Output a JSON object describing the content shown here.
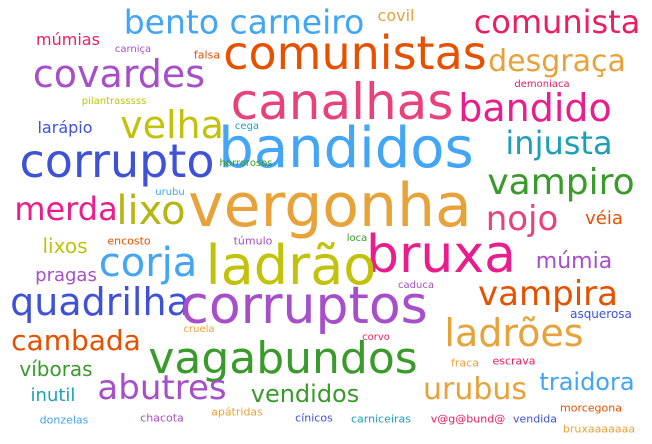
{
  "colors": {
    "green": "#3a9a2b",
    "orange": "#e8a23a",
    "red_orange": "#e65100",
    "blue": "#42a5f5",
    "dark_blue": "#3f51d6",
    "purple": "#a64fc9",
    "pink": "#e8417b",
    "magenta": "#e91e8c",
    "teal": "#1e9fb8",
    "yellow_green": "#c2c20b",
    "olive": "#b5b514"
  },
  "words": [
    {
      "text": "bento carneiro",
      "color": "#42a5f5"
    },
    {
      "text": "comunista",
      "color": "#e91e63"
    },
    {
      "text": "covil",
      "color": "#e8a23a"
    },
    {
      "text": "múmias",
      "color": "#e91e63"
    },
    {
      "text": "carniça",
      "color": "#a64fc9"
    },
    {
      "text": "falsa",
      "color": "#e65100"
    },
    {
      "text": "comunistas",
      "color": "#e65100"
    },
    {
      "text": "desgraça",
      "color": "#e8a23a"
    },
    {
      "text": "covardes",
      "color": "#a64fc9"
    },
    {
      "text": "demoniaca",
      "color": "#e91e63"
    },
    {
      "text": "pilantrasssss",
      "color": "#c2c20b"
    },
    {
      "text": "canalhas",
      "color": "#e8417b"
    },
    {
      "text": "bandido",
      "color": "#e91e8c"
    },
    {
      "text": "larápio",
      "color": "#3f51d6"
    },
    {
      "text": "velha",
      "color": "#c2c20b"
    },
    {
      "text": "cega",
      "color": "#1e9fb8"
    },
    {
      "text": "injusta",
      "color": "#1e9fb8"
    },
    {
      "text": "corrupto",
      "color": "#3f51d6"
    },
    {
      "text": "bandidos",
      "color": "#42a5f5"
    },
    {
      "text": "horrorosos",
      "color": "#3a9a2b"
    },
    {
      "text": "vampiro",
      "color": "#3a9a2b"
    },
    {
      "text": "urubu",
      "color": "#42a5f5"
    },
    {
      "text": "merda",
      "color": "#e91e8c"
    },
    {
      "text": "lixo",
      "color": "#b5b514"
    },
    {
      "text": "vergonha",
      "color": "#e8a23a"
    },
    {
      "text": "nojo",
      "color": "#e8417b"
    },
    {
      "text": "véia",
      "color": "#e65100"
    },
    {
      "text": "lixos",
      "color": "#c2c20b"
    },
    {
      "text": "encosto",
      "color": "#e65100"
    },
    {
      "text": "túmulo",
      "color": "#a64fc9"
    },
    {
      "text": "loca",
      "color": "#3a9a2b"
    },
    {
      "text": "bruxa",
      "color": "#e91e8c"
    },
    {
      "text": "corja",
      "color": "#42a5f5"
    },
    {
      "text": "ladrão",
      "color": "#c2c20b"
    },
    {
      "text": "múmia",
      "color": "#a64fc9"
    },
    {
      "text": "pragas",
      "color": "#a64fc9"
    },
    {
      "text": "caduca",
      "color": "#a64fc9"
    },
    {
      "text": "vampira",
      "color": "#e65100"
    },
    {
      "text": "quadrilha",
      "color": "#3f51d6"
    },
    {
      "text": "corruptos",
      "color": "#a64fc9"
    },
    {
      "text": "asquerosa",
      "color": "#3f51d6"
    },
    {
      "text": "cambada",
      "color": "#e65100"
    },
    {
      "text": "cruela",
      "color": "#e8a23a"
    },
    {
      "text": "corvo",
      "color": "#e91e63"
    },
    {
      "text": "ladrões",
      "color": "#e8a23a"
    },
    {
      "text": "vagabundos",
      "color": "#3a9a2b"
    },
    {
      "text": "víboras",
      "color": "#3a9a2b"
    },
    {
      "text": "fraca",
      "color": "#e8a23a"
    },
    {
      "text": "escrava",
      "color": "#e91e63"
    },
    {
      "text": "abutres",
      "color": "#a64fc9"
    },
    {
      "text": "vendidos",
      "color": "#3a9a2b"
    },
    {
      "text": "urubus",
      "color": "#e8a23a"
    },
    {
      "text": "traidora",
      "color": "#42a5f5"
    },
    {
      "text": "inutil",
      "color": "#1e9fb8"
    },
    {
      "text": "donzelas",
      "color": "#42a5f5"
    },
    {
      "text": "chacota",
      "color": "#a64fc9"
    },
    {
      "text": "apátridas",
      "color": "#e8a23a"
    },
    {
      "text": "cínicos",
      "color": "#3f51d6"
    },
    {
      "text": "carniceiras",
      "color": "#1e9fb8"
    },
    {
      "text": "v@g@bund@",
      "color": "#e91e63"
    },
    {
      "text": "vendida",
      "color": "#3f51d6"
    },
    {
      "text": "morcegona",
      "color": "#e65100"
    },
    {
      "text": "bruxaaaaaaa",
      "color": "#e8a23a"
    }
  ]
}
